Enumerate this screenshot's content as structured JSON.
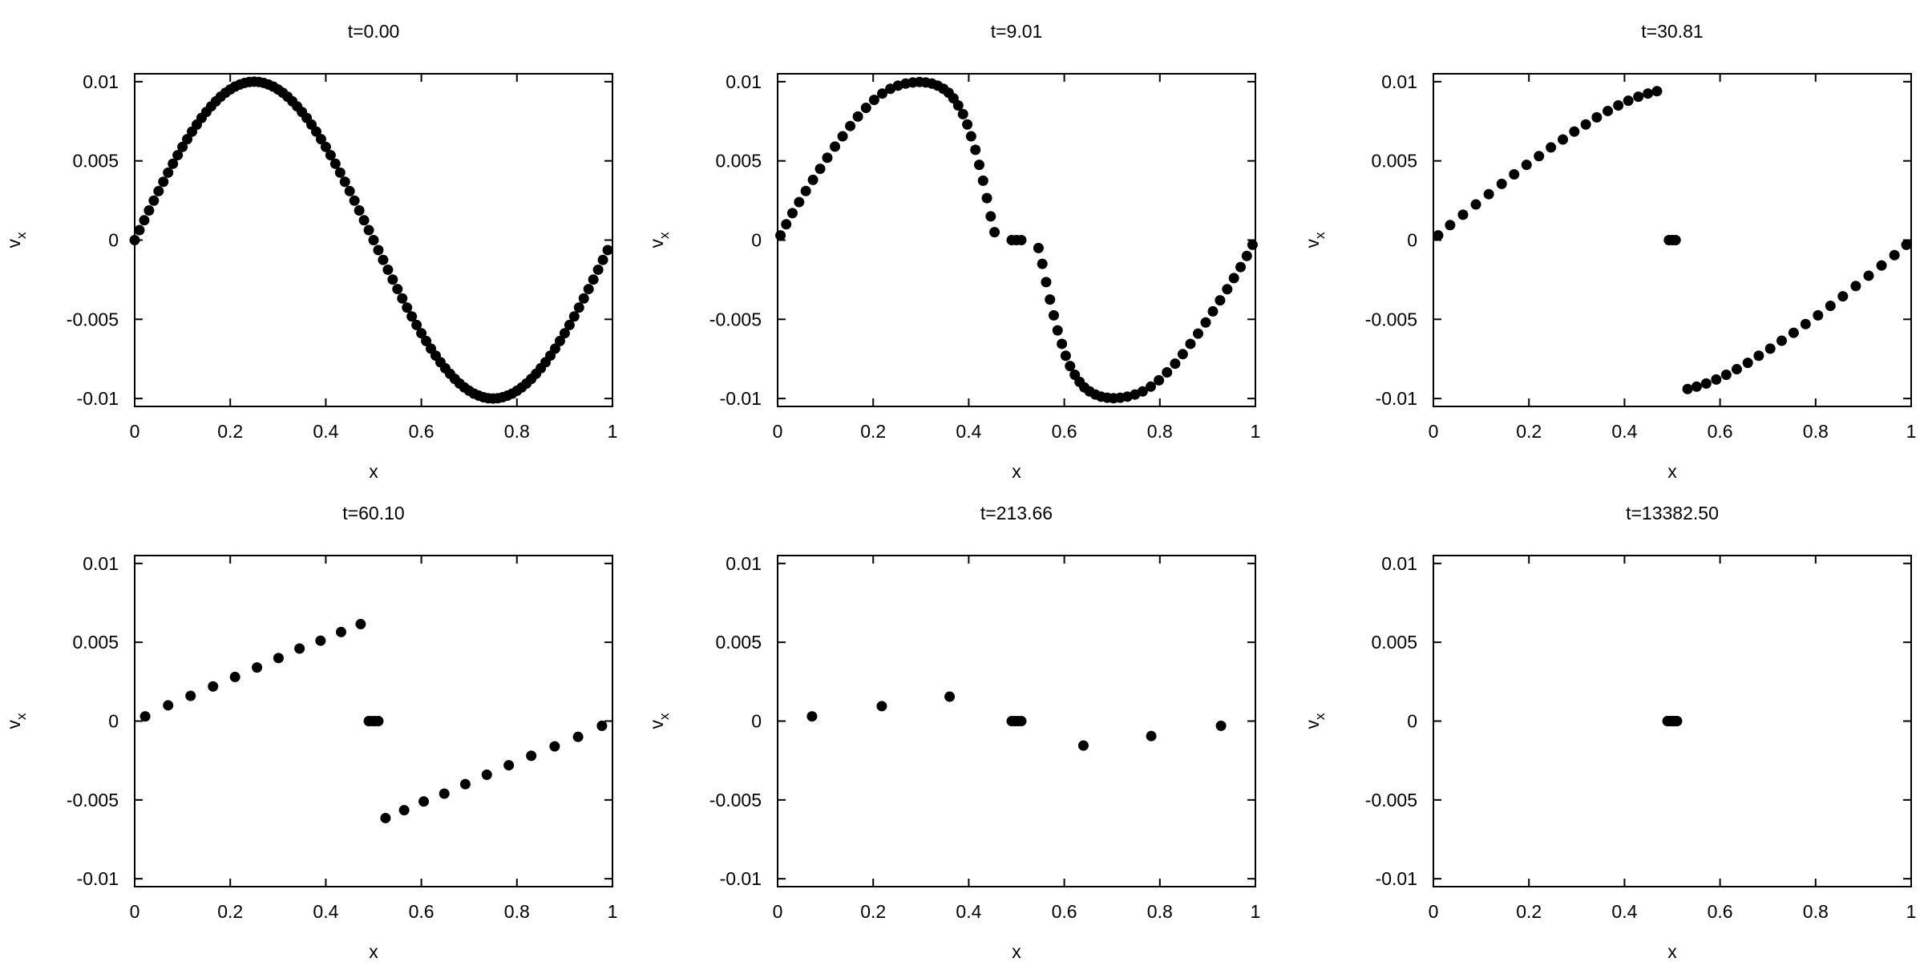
{
  "chart_data": [
    {
      "type": "scatter",
      "title": "t=0.00",
      "xlabel": "x",
      "ylabel": "v",
      "ylabel_sub": "x",
      "xlim": [
        0,
        1
      ],
      "ylim": [
        -0.0105,
        0.0105
      ],
      "xticks": [
        "0",
        "0.2",
        "0.4",
        "0.6",
        "0.8",
        "1"
      ],
      "yticks": [
        "0.01",
        "0.005",
        "0",
        "-0.005",
        "-0.01"
      ],
      "points": [
        [
          0.0,
          0.0
        ],
        [
          0.01,
          0.00063
        ],
        [
          0.02,
          0.00125
        ],
        [
          0.03,
          0.00187
        ],
        [
          0.04,
          0.00249
        ],
        [
          0.05,
          0.00309
        ],
        [
          0.06,
          0.00368
        ],
        [
          0.07,
          0.00426
        ],
        [
          0.08,
          0.00482
        ],
        [
          0.09,
          0.00536
        ],
        [
          0.1,
          0.00588
        ],
        [
          0.11,
          0.00637
        ],
        [
          0.12,
          0.00685
        ],
        [
          0.13,
          0.00729
        ],
        [
          0.14,
          0.00771
        ],
        [
          0.15,
          0.00809
        ],
        [
          0.16,
          0.00844
        ],
        [
          0.17,
          0.00876
        ],
        [
          0.18,
          0.00905
        ],
        [
          0.19,
          0.0093
        ],
        [
          0.2,
          0.00951
        ],
        [
          0.21,
          0.00969
        ],
        [
          0.22,
          0.00982
        ],
        [
          0.23,
          0.00992
        ],
        [
          0.24,
          0.00998
        ],
        [
          0.25,
          0.01
        ],
        [
          0.26,
          0.00998
        ],
        [
          0.27,
          0.00992
        ],
        [
          0.28,
          0.00982
        ],
        [
          0.29,
          0.00969
        ],
        [
          0.3,
          0.00951
        ],
        [
          0.31,
          0.0093
        ],
        [
          0.32,
          0.00905
        ],
        [
          0.33,
          0.00876
        ],
        [
          0.34,
          0.00844
        ],
        [
          0.35,
          0.00809
        ],
        [
          0.36,
          0.00771
        ],
        [
          0.37,
          0.00729
        ],
        [
          0.38,
          0.00685
        ],
        [
          0.39,
          0.00637
        ],
        [
          0.4,
          0.00588
        ],
        [
          0.41,
          0.00536
        ],
        [
          0.42,
          0.00482
        ],
        [
          0.43,
          0.00426
        ],
        [
          0.44,
          0.00368
        ],
        [
          0.45,
          0.00309
        ],
        [
          0.46,
          0.00249
        ],
        [
          0.47,
          0.00187
        ],
        [
          0.48,
          0.00125
        ],
        [
          0.49,
          0.00063
        ],
        [
          0.5,
          0.0
        ],
        [
          0.51,
          -0.00063
        ],
        [
          0.52,
          -0.00125
        ],
        [
          0.53,
          -0.00187
        ],
        [
          0.54,
          -0.00249
        ],
        [
          0.55,
          -0.00309
        ],
        [
          0.56,
          -0.00368
        ],
        [
          0.57,
          -0.00426
        ],
        [
          0.58,
          -0.00482
        ],
        [
          0.59,
          -0.00536
        ],
        [
          0.6,
          -0.00588
        ],
        [
          0.61,
          -0.00637
        ],
        [
          0.62,
          -0.00685
        ],
        [
          0.63,
          -0.00729
        ],
        [
          0.64,
          -0.00771
        ],
        [
          0.65,
          -0.00809
        ],
        [
          0.66,
          -0.00844
        ],
        [
          0.67,
          -0.00876
        ],
        [
          0.68,
          -0.00905
        ],
        [
          0.69,
          -0.0093
        ],
        [
          0.7,
          -0.00951
        ],
        [
          0.71,
          -0.00969
        ],
        [
          0.72,
          -0.00982
        ],
        [
          0.73,
          -0.00992
        ],
        [
          0.74,
          -0.00998
        ],
        [
          0.75,
          -0.01
        ],
        [
          0.76,
          -0.00998
        ],
        [
          0.77,
          -0.00992
        ],
        [
          0.78,
          -0.00982
        ],
        [
          0.79,
          -0.00969
        ],
        [
          0.8,
          -0.00951
        ],
        [
          0.81,
          -0.0093
        ],
        [
          0.82,
          -0.00905
        ],
        [
          0.83,
          -0.00876
        ],
        [
          0.84,
          -0.00844
        ],
        [
          0.85,
          -0.00809
        ],
        [
          0.86,
          -0.00771
        ],
        [
          0.87,
          -0.00729
        ],
        [
          0.88,
          -0.00685
        ],
        [
          0.89,
          -0.00637
        ],
        [
          0.9,
          -0.00588
        ],
        [
          0.91,
          -0.00536
        ],
        [
          0.92,
          -0.00482
        ],
        [
          0.93,
          -0.00426
        ],
        [
          0.94,
          -0.00368
        ],
        [
          0.95,
          -0.00309
        ],
        [
          0.96,
          -0.00249
        ],
        [
          0.97,
          -0.00187
        ],
        [
          0.98,
          -0.00125
        ],
        [
          0.99,
          -0.00063
        ]
      ]
    },
    {
      "type": "scatter",
      "title": "t=9.01",
      "xlabel": "x",
      "ylabel": "v",
      "ylabel_sub": "x",
      "xlim": [
        0,
        1
      ],
      "ylim": [
        -0.0105,
        0.0105
      ],
      "xticks": [
        "0",
        "0.2",
        "0.4",
        "0.6",
        "0.8",
        "1"
      ],
      "yticks": [
        "0.01",
        "0.005",
        "0",
        "-0.005",
        "-0.01"
      ],
      "points": [
        [
          0.006,
          0.0003
        ],
        [
          0.018,
          0.001
        ],
        [
          0.031,
          0.0017
        ],
        [
          0.045,
          0.0024
        ],
        [
          0.059,
          0.0031
        ],
        [
          0.074,
          0.0038
        ],
        [
          0.089,
          0.0045
        ],
        [
          0.104,
          0.0052
        ],
        [
          0.12,
          0.0059
        ],
        [
          0.136,
          0.00655
        ],
        [
          0.152,
          0.0072
        ],
        [
          0.168,
          0.0078
        ],
        [
          0.185,
          0.00835
        ],
        [
          0.202,
          0.00885
        ],
        [
          0.219,
          0.00925
        ],
        [
          0.236,
          0.00955
        ],
        [
          0.252,
          0.00975
        ],
        [
          0.268,
          0.00988
        ],
        [
          0.283,
          0.00995
        ],
        [
          0.297,
          0.00998
        ],
        [
          0.31,
          0.00995
        ],
        [
          0.323,
          0.00988
        ],
        [
          0.335,
          0.00975
        ],
        [
          0.347,
          0.00955
        ],
        [
          0.358,
          0.0093
        ],
        [
          0.368,
          0.00895
        ],
        [
          0.378,
          0.0085
        ],
        [
          0.388,
          0.00795
        ],
        [
          0.397,
          0.0073
        ],
        [
          0.405,
          0.00655
        ],
        [
          0.414,
          0.0057
        ],
        [
          0.422,
          0.00475
        ],
        [
          0.43,
          0.00375
        ],
        [
          0.438,
          0.00265
        ],
        [
          0.446,
          0.0015
        ],
        [
          0.454,
          0.0005
        ],
        [
          0.49,
          0.0
        ],
        [
          0.5,
          0.0
        ],
        [
          0.51,
          0.0
        ],
        [
          0.546,
          -0.0005
        ],
        [
          0.554,
          -0.0015
        ],
        [
          0.562,
          -0.00265
        ],
        [
          0.57,
          -0.00375
        ],
        [
          0.578,
          -0.00475
        ],
        [
          0.586,
          -0.0057
        ],
        [
          0.595,
          -0.00655
        ],
        [
          0.603,
          -0.0073
        ],
        [
          0.612,
          -0.00795
        ],
        [
          0.622,
          -0.0085
        ],
        [
          0.632,
          -0.00895
        ],
        [
          0.642,
          -0.0093
        ],
        [
          0.653,
          -0.00955
        ],
        [
          0.665,
          -0.00975
        ],
        [
          0.677,
          -0.00988
        ],
        [
          0.69,
          -0.00995
        ],
        [
          0.703,
          -0.00998
        ],
        [
          0.717,
          -0.00995
        ],
        [
          0.732,
          -0.00988
        ],
        [
          0.748,
          -0.00975
        ],
        [
          0.764,
          -0.00955
        ],
        [
          0.781,
          -0.00925
        ],
        [
          0.798,
          -0.00885
        ],
        [
          0.815,
          -0.00835
        ],
        [
          0.832,
          -0.0078
        ],
        [
          0.848,
          -0.0072
        ],
        [
          0.864,
          -0.00655
        ],
        [
          0.88,
          -0.0059
        ],
        [
          0.896,
          -0.0052
        ],
        [
          0.911,
          -0.0045
        ],
        [
          0.926,
          -0.0038
        ],
        [
          0.941,
          -0.0031
        ],
        [
          0.955,
          -0.0024
        ],
        [
          0.969,
          -0.0017
        ],
        [
          0.982,
          -0.001
        ],
        [
          0.994,
          -0.0003
        ]
      ]
    },
    {
      "type": "scatter",
      "title": "t=30.81",
      "xlabel": "x",
      "ylabel": "v",
      "ylabel_sub": "x",
      "xlim": [
        0,
        1
      ],
      "ylim": [
        -0.0105,
        0.0105
      ],
      "xticks": [
        "0",
        "0.2",
        "0.4",
        "0.6",
        "0.8",
        "1"
      ],
      "yticks": [
        "0.01",
        "0.005",
        "0",
        "-0.005",
        "-0.01"
      ],
      "points": [
        [
          0.01,
          0.0003
        ],
        [
          0.035,
          0.00095
        ],
        [
          0.062,
          0.0016
        ],
        [
          0.089,
          0.00225
        ],
        [
          0.116,
          0.0029
        ],
        [
          0.143,
          0.00355
        ],
        [
          0.169,
          0.00415
        ],
        [
          0.195,
          0.00475
        ],
        [
          0.221,
          0.0053
        ],
        [
          0.246,
          0.00585
        ],
        [
          0.271,
          0.00635
        ],
        [
          0.295,
          0.00685
        ],
        [
          0.319,
          0.0073
        ],
        [
          0.342,
          0.00775
        ],
        [
          0.365,
          0.00815
        ],
        [
          0.387,
          0.0085
        ],
        [
          0.408,
          0.0088
        ],
        [
          0.429,
          0.00905
        ],
        [
          0.449,
          0.00925
        ],
        [
          0.468,
          0.0094
        ],
        [
          0.493,
          0.0
        ],
        [
          0.5,
          0.0
        ],
        [
          0.507,
          0.0
        ],
        [
          0.532,
          -0.0094
        ],
        [
          0.551,
          -0.00925
        ],
        [
          0.571,
          -0.00905
        ],
        [
          0.592,
          -0.0088
        ],
        [
          0.613,
          -0.0085
        ],
        [
          0.635,
          -0.00815
        ],
        [
          0.658,
          -0.00775
        ],
        [
          0.681,
          -0.0073
        ],
        [
          0.705,
          -0.00685
        ],
        [
          0.729,
          -0.00635
        ],
        [
          0.754,
          -0.00585
        ],
        [
          0.779,
          -0.0053
        ],
        [
          0.805,
          -0.00475
        ],
        [
          0.831,
          -0.00415
        ],
        [
          0.857,
          -0.00355
        ],
        [
          0.884,
          -0.0029
        ],
        [
          0.911,
          -0.00225
        ],
        [
          0.938,
          -0.0016
        ],
        [
          0.965,
          -0.00095
        ],
        [
          0.99,
          -0.0003
        ]
      ]
    },
    {
      "type": "scatter",
      "title": "t=60.10",
      "xlabel": "x",
      "ylabel": "v",
      "ylabel_sub": "x",
      "xlim": [
        0,
        1
      ],
      "ylim": [
        -0.0105,
        0.0105
      ],
      "xticks": [
        "0",
        "0.2",
        "0.4",
        "0.6",
        "0.8",
        "1"
      ],
      "yticks": [
        "0.01",
        "0.005",
        "0",
        "-0.005",
        "-0.01"
      ],
      "points": [
        [
          0.022,
          0.0003
        ],
        [
          0.07,
          0.001
        ],
        [
          0.117,
          0.0016
        ],
        [
          0.164,
          0.0022
        ],
        [
          0.21,
          0.0028
        ],
        [
          0.256,
          0.0034
        ],
        [
          0.301,
          0.004
        ],
        [
          0.345,
          0.0046
        ],
        [
          0.389,
          0.0051
        ],
        [
          0.432,
          0.00565
        ],
        [
          0.473,
          0.00615
        ],
        [
          0.49,
          0.0
        ],
        [
          0.497,
          0.0
        ],
        [
          0.503,
          0.0
        ],
        [
          0.51,
          0.0
        ],
        [
          0.525,
          -0.00615
        ],
        [
          0.564,
          -0.00565
        ],
        [
          0.605,
          -0.0051
        ],
        [
          0.648,
          -0.0046
        ],
        [
          0.692,
          -0.004
        ],
        [
          0.737,
          -0.0034
        ],
        [
          0.783,
          -0.0028
        ],
        [
          0.83,
          -0.0022
        ],
        [
          0.879,
          -0.0016
        ],
        [
          0.928,
          -0.001
        ],
        [
          0.978,
          -0.0003
        ]
      ]
    },
    {
      "type": "scatter",
      "title": "t=213.66",
      "xlabel": "x",
      "ylabel": "v",
      "ylabel_sub": "x",
      "xlim": [
        0,
        1
      ],
      "ylim": [
        -0.0105,
        0.0105
      ],
      "xticks": [
        "0",
        "0.2",
        "0.4",
        "0.6",
        "0.8",
        "1"
      ],
      "yticks": [
        "0.01",
        "0.005",
        "0",
        "-0.005",
        "-0.01"
      ],
      "points": [
        [
          0.072,
          0.0003
        ],
        [
          0.218,
          0.00095
        ],
        [
          0.36,
          0.00155
        ],
        [
          0.49,
          0.0
        ],
        [
          0.497,
          0.0
        ],
        [
          0.503,
          0.0
        ],
        [
          0.51,
          0.0
        ],
        [
          0.64,
          -0.00155
        ],
        [
          0.782,
          -0.00095
        ],
        [
          0.928,
          -0.0003
        ]
      ]
    },
    {
      "type": "scatter",
      "title": "t=13382.50",
      "xlabel": "x",
      "ylabel": "v",
      "ylabel_sub": "x",
      "xlim": [
        0,
        1
      ],
      "ylim": [
        -0.0105,
        0.0105
      ],
      "xticks": [
        "0",
        "0.2",
        "0.4",
        "0.6",
        "0.8",
        "1"
      ],
      "yticks": [
        "0.01",
        "0.005",
        "0",
        "-0.005",
        "-0.01"
      ],
      "points": [
        [
          0.49,
          0.0
        ],
        [
          0.494,
          0.0
        ],
        [
          0.498,
          0.0
        ],
        [
          0.502,
          0.0
        ],
        [
          0.506,
          0.0
        ],
        [
          0.51,
          0.0
        ]
      ]
    }
  ]
}
